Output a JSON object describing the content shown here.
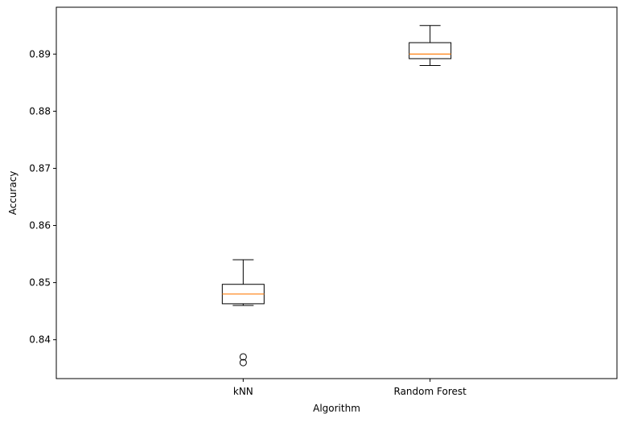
{
  "chart_data": {
    "type": "box",
    "xlabel": "Algorithm",
    "ylabel": "Accuracy",
    "ylim": [
      0.8332,
      0.8982
    ],
    "yticks": [
      0.84,
      0.85,
      0.86,
      0.87,
      0.88,
      0.89
    ],
    "ytick_labels": [
      "0.84",
      "0.85",
      "0.86",
      "0.87",
      "0.88",
      "0.89"
    ],
    "categories": [
      "kNN",
      "Random Forest"
    ],
    "boxes": [
      {
        "category": "kNN",
        "whisker_low": 0.846,
        "q1": 0.8463,
        "median": 0.848,
        "q3": 0.8497,
        "whisker_high": 0.854,
        "outliers": [
          0.837,
          0.836
        ]
      },
      {
        "category": "Random Forest",
        "whisker_low": 0.888,
        "q1": 0.8892,
        "median": 0.89,
        "q3": 0.892,
        "whisker_high": 0.895,
        "outliers": []
      }
    ],
    "grid": false,
    "colors": {
      "box": "#000000",
      "median": "#ff7f0e"
    }
  }
}
